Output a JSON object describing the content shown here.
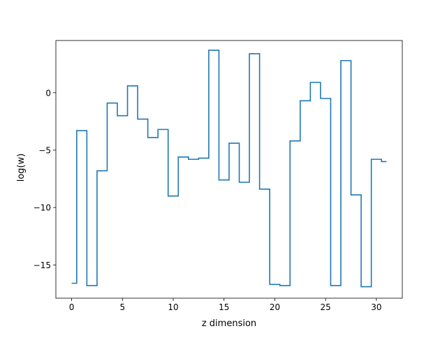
{
  "chart_data": {
    "type": "line",
    "drawstyle": "steps-mid",
    "title": "",
    "xlabel": "z dimension",
    "ylabel": "log(w)",
    "xlim": [
      -1.55,
      32.55
    ],
    "ylim": [
      -17.9,
      4.55
    ],
    "xticks": [
      0,
      5,
      10,
      15,
      20,
      25,
      30
    ],
    "yticks": [
      -15,
      -10,
      -5,
      0
    ],
    "grid": false,
    "legend": "none",
    "series": [
      {
        "color": "#1f77b4",
        "x": [
          0,
          1,
          2,
          3,
          4,
          5,
          6,
          7,
          8,
          9,
          10,
          11,
          12,
          13,
          14,
          15,
          16,
          17,
          18,
          19,
          20,
          21,
          22,
          23,
          24,
          25,
          26,
          27,
          28,
          29,
          30,
          31
        ],
        "y": [
          -16.6,
          -3.3,
          -16.8,
          -6.8,
          -0.9,
          -2.0,
          0.6,
          -2.3,
          -3.9,
          -3.2,
          -9.0,
          -5.6,
          -5.8,
          -5.7,
          3.7,
          -7.6,
          -4.4,
          -7.8,
          3.4,
          -8.4,
          -16.7,
          -16.8,
          -4.2,
          -0.7,
          0.9,
          -0.5,
          -16.8,
          2.8,
          -8.9,
          -16.9,
          -5.8,
          -6.0
        ]
      }
    ]
  }
}
